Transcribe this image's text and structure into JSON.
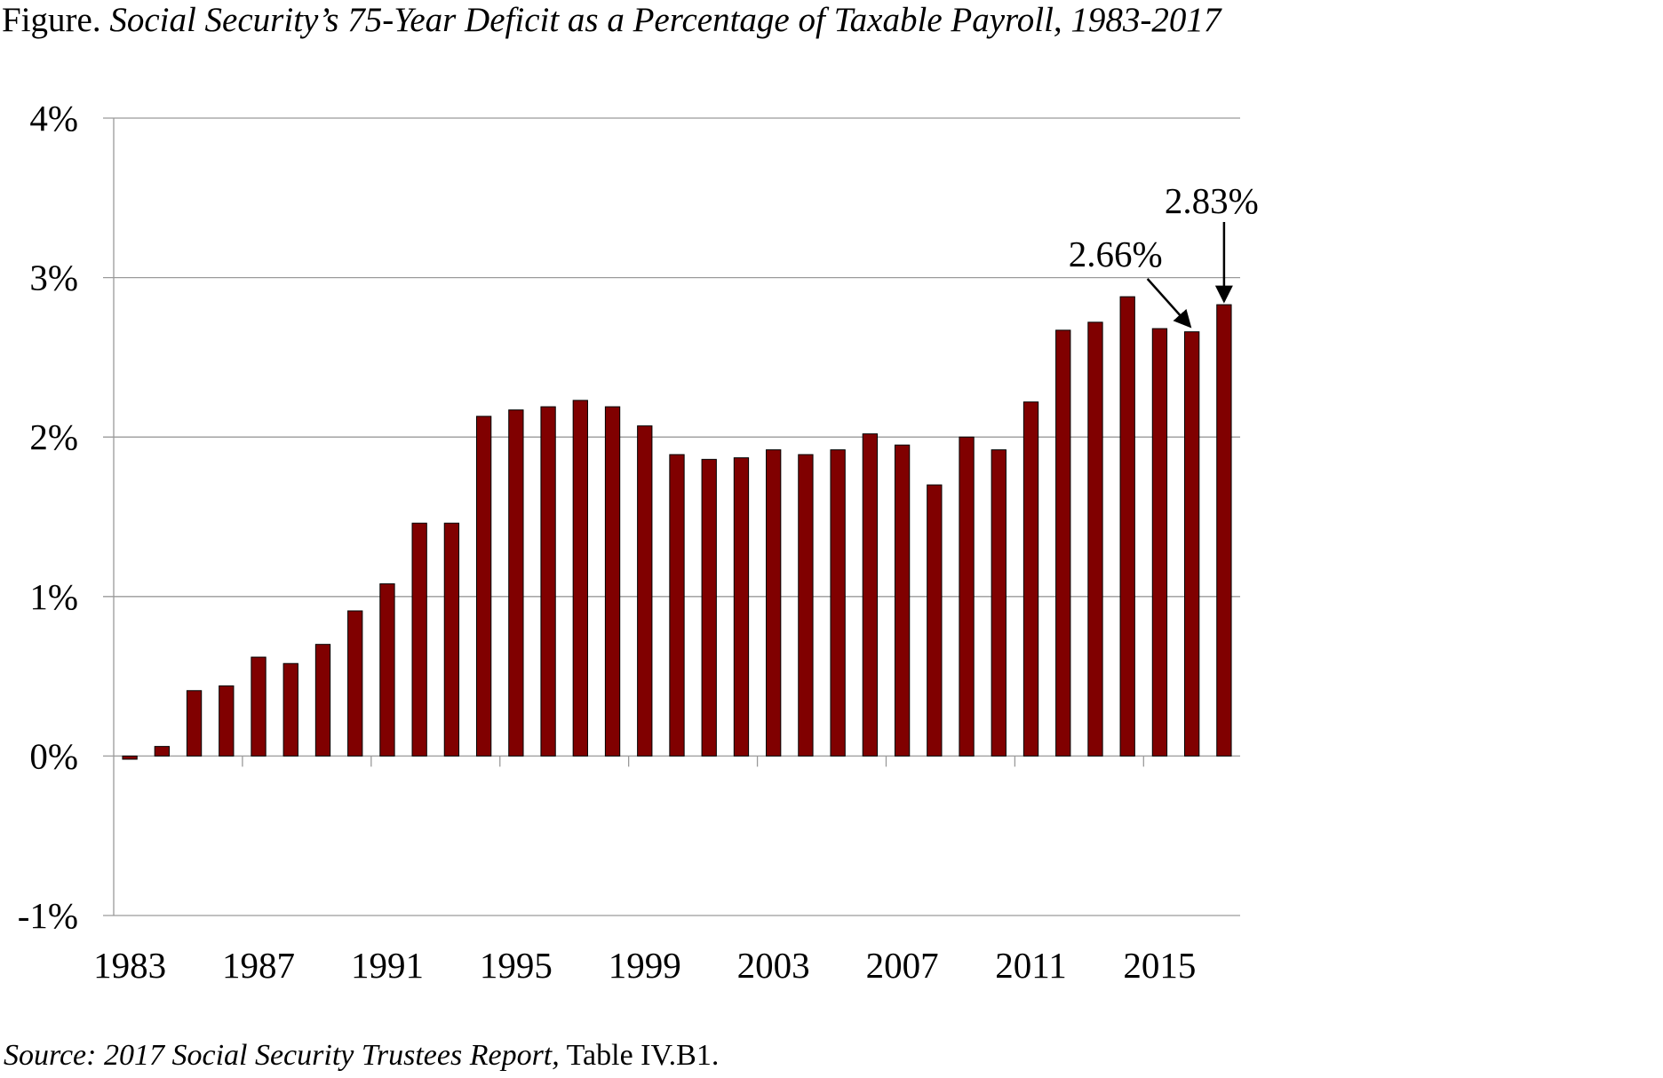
{
  "title_prefix": "Figure.",
  "title_italic": "Social Security’s 75-Year Deficit as a Percentage of Taxable Payroll, 1983-2017",
  "source_italic": "Source: 2017 Social Security Trustees Report,",
  "source_rest": "Table IV.B1.",
  "chart_data": {
    "type": "bar",
    "title": "Social Security’s 75-Year Deficit as a Percentage of Taxable Payroll, 1983-2017",
    "xlabel": "",
    "ylabel": "",
    "categories": [
      1983,
      1984,
      1985,
      1986,
      1987,
      1988,
      1989,
      1990,
      1991,
      1992,
      1993,
      1994,
      1995,
      1996,
      1997,
      1998,
      1999,
      2000,
      2001,
      2002,
      2003,
      2004,
      2005,
      2006,
      2007,
      2008,
      2009,
      2010,
      2011,
      2012,
      2013,
      2014,
      2015,
      2016,
      2017
    ],
    "values": [
      -0.02,
      0.06,
      0.41,
      0.44,
      0.62,
      0.58,
      0.7,
      0.91,
      1.08,
      1.46,
      1.46,
      2.13,
      2.17,
      2.19,
      2.23,
      2.19,
      2.07,
      1.89,
      1.86,
      1.87,
      1.92,
      1.89,
      1.92,
      2.02,
      1.95,
      1.7,
      2.0,
      1.92,
      2.22,
      2.67,
      2.72,
      2.88,
      2.68,
      2.66,
      2.83
    ],
    "ylim": [
      -1,
      4
    ],
    "yticks": [
      "-1%",
      "0%",
      "1%",
      "2%",
      "3%",
      "4%"
    ],
    "xticks": [
      "1983",
      "1987",
      "1991",
      "1995",
      "1999",
      "2003",
      "2007",
      "2011",
      "2015"
    ],
    "annotations": [
      {
        "year": 2016,
        "label": "2.66%"
      },
      {
        "year": 2017,
        "label": "2.83%"
      }
    ],
    "grid": true,
    "bar_color": "#800000",
    "legend": "none"
  }
}
